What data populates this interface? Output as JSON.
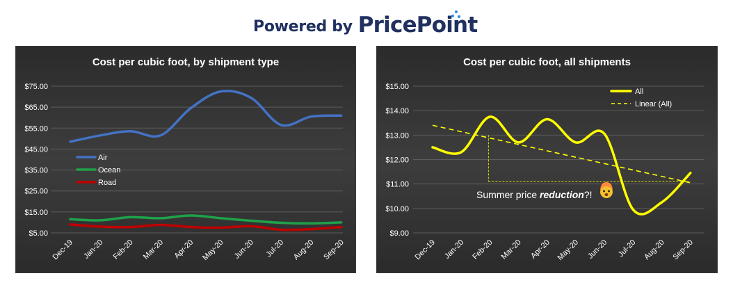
{
  "branding": {
    "prefix": "Powered by",
    "name": "PricePoint",
    "name_color": "#20305f",
    "dots_color": "#2a8de0"
  },
  "chart_data": [
    {
      "type": "line",
      "title": "Cost per cubic foot, by shipment type",
      "categories": [
        "Dec-19",
        "Jan-20",
        "Feb-20",
        "Mar-20",
        "Apr-20",
        "May-20",
        "Jun-20",
        "Jul-20",
        "Aug-20",
        "Sep-20"
      ],
      "y_ticks": [
        "$75.00",
        "$65.00",
        "$55.00",
        "$45.00",
        "$35.00",
        "$25.00",
        "$15.00",
        "$5.00"
      ],
      "ylim": [
        5,
        75
      ],
      "grid": true,
      "legend_position": "left-middle",
      "series": [
        {
          "name": "Air",
          "color": "#4472c4",
          "values": [
            48.5,
            51.5,
            53.5,
            51.5,
            64.5,
            72.5,
            69.5,
            56.5,
            60.5,
            61.0
          ]
        },
        {
          "name": "Ocean",
          "color": "#1fa149",
          "values": [
            11.5,
            11.0,
            12.5,
            12.0,
            13.3,
            12.0,
            10.8,
            9.8,
            9.5,
            10.0
          ]
        },
        {
          "name": "Road",
          "color": "#c00000",
          "values": [
            9.0,
            8.0,
            7.8,
            8.8,
            7.8,
            7.5,
            8.2,
            6.5,
            6.8,
            7.8
          ]
        }
      ]
    },
    {
      "type": "line",
      "title": "Cost per cubic foot, all shipments",
      "categories": [
        "Dec-19",
        "Jan-20",
        "Feb-20",
        "Mar-20",
        "Apr-20",
        "May-20",
        "Jun-20",
        "Jul-20",
        "Aug-20",
        "Sep-20"
      ],
      "y_ticks": [
        "$15.00",
        "$14.00",
        "$13.00",
        "$12.00",
        "$11.00",
        "$10.00",
        "$9.00"
      ],
      "ylim": [
        9,
        15
      ],
      "grid": true,
      "legend_position": "top-right",
      "series": [
        {
          "name": "All",
          "color": "#ffff00",
          "values": [
            12.5,
            12.3,
            13.75,
            12.7,
            13.65,
            12.7,
            13.05,
            9.95,
            10.25,
            11.45
          ]
        }
      ],
      "trendline": {
        "name": "Linear (All)",
        "color": "#ffff00",
        "values": [
          13.4,
          11.05
        ]
      },
      "annotation": {
        "text_before": "Summer price ",
        "text_emphasis": "reduction",
        "text_after": "?!",
        "from_value": 13.0,
        "to_value": 11.1,
        "emoji": "🤯"
      }
    }
  ]
}
